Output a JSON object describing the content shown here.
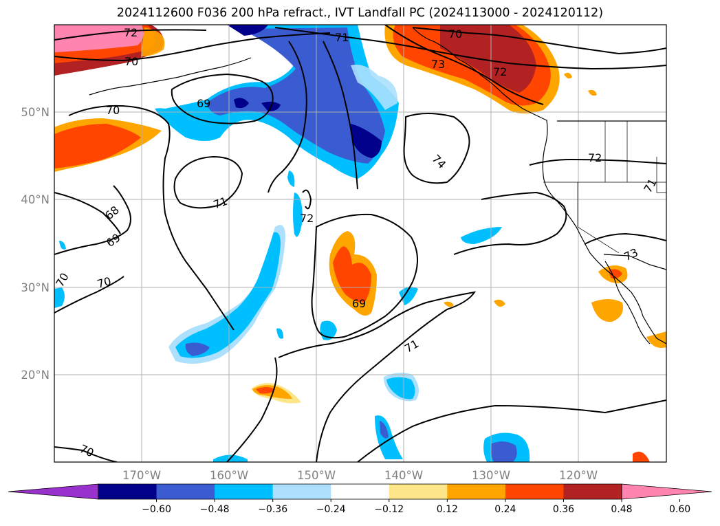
{
  "title": "2024112600 F036 200 hPa refract., IVT Landfall PC (2024113000 - 2024120112)",
  "map": {
    "lon_ticks": [
      "170°W",
      "160°W",
      "150°W",
      "140°W",
      "130°W",
      "120°W"
    ],
    "lat_ticks": [
      "50°N",
      "40°N",
      "30°N",
      "20°N"
    ],
    "grid": true,
    "projection": "lat-lon",
    "extent": {
      "lon": [
        -180,
        -110
      ],
      "lat": [
        10,
        60
      ]
    }
  },
  "contour_labels": [
    "72",
    "70",
    "71",
    "70",
    "73",
    "72",
    "69",
    "70",
    "74",
    "72",
    "71",
    "68",
    "69",
    "71",
    "72",
    "70",
    "70",
    "69",
    "73",
    "71",
    "70"
  ],
  "colorbar": {
    "ticks": [
      "−0.60",
      "−0.48",
      "−0.36",
      "−0.24",
      "−0.12",
      "0.12",
      "0.24",
      "0.36",
      "0.48",
      "0.60"
    ],
    "colors": [
      "#9932cc",
      "#00008b",
      "#3a5cd0",
      "#00bfff",
      "#ace0fd",
      "#ffffff",
      "#fde68a",
      "#ffa500",
      "#ff4500",
      "#b22222",
      "#ff85b0"
    ],
    "extend": "both"
  }
}
